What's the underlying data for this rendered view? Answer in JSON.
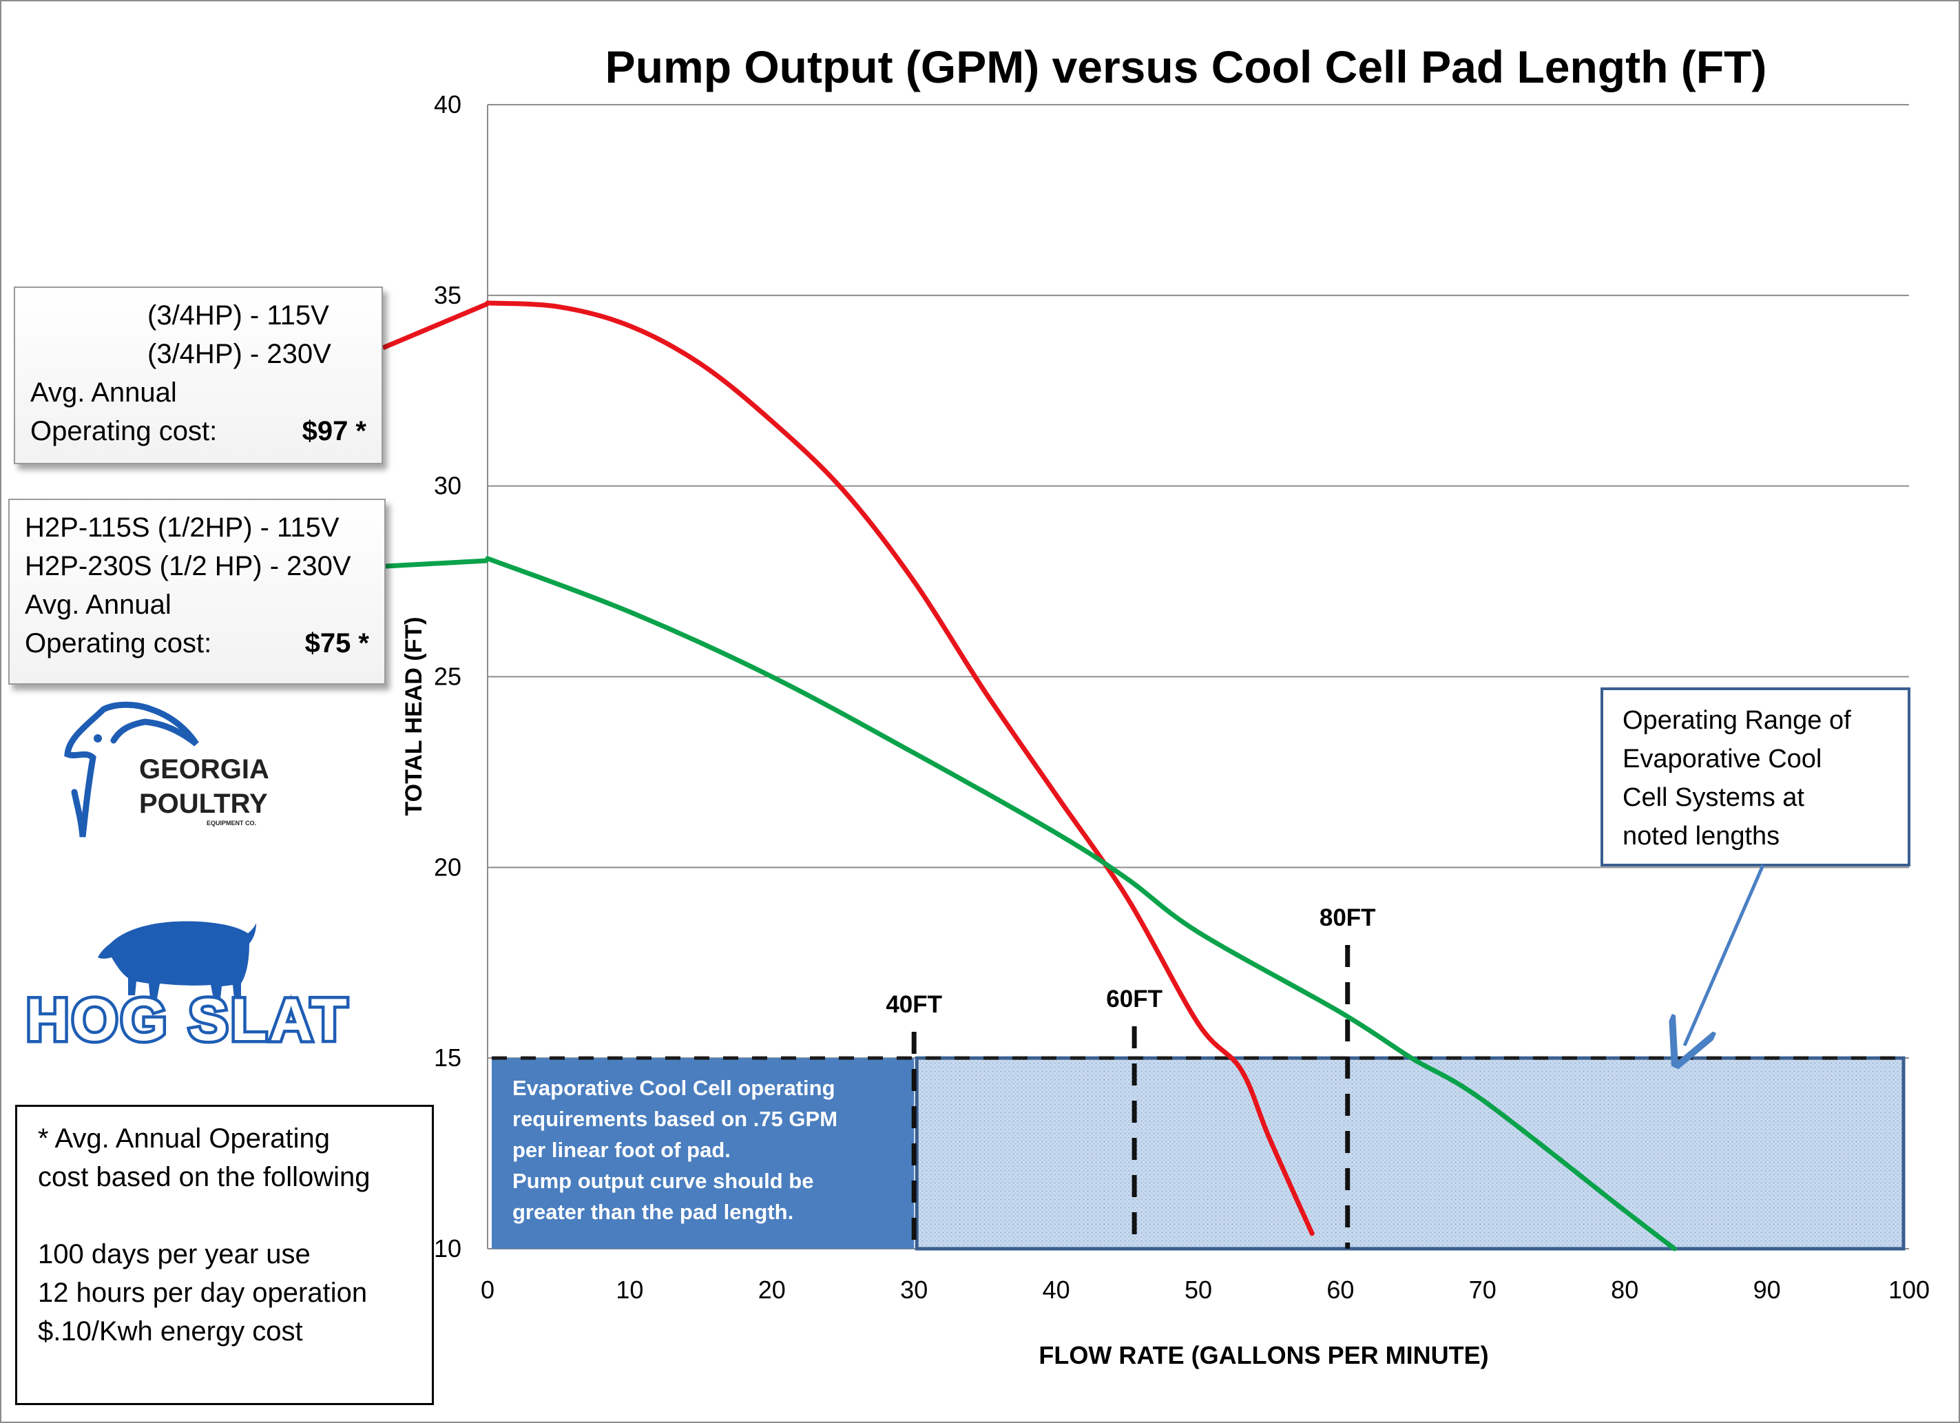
{
  "chart_data": {
    "type": "line",
    "title": "Pump Output (GPM) versus Cool Cell Pad Length (FT)",
    "xlabel": "FLOW RATE (GALLONS PER MINUTE)",
    "ylabel": "TOTAL HEAD (FT)",
    "xlim": [
      0,
      100
    ],
    "ylim": [
      10,
      40
    ],
    "x_ticks": [
      "0",
      "10",
      "20",
      "30",
      "40",
      "50",
      "60",
      "70",
      "80",
      "90",
      "100"
    ],
    "y_ticks": [
      "10",
      "15",
      "20",
      "25",
      "30",
      "35",
      "40"
    ],
    "grid": "horizontal",
    "series": [
      {
        "color": "#e8141b",
        "points": [
          [
            0,
            34.8
          ],
          [
            5,
            34.7
          ],
          [
            10,
            34.2
          ],
          [
            15,
            33.2
          ],
          [
            20,
            31.7
          ],
          [
            25,
            29.9
          ],
          [
            30,
            27.5
          ],
          [
            35,
            24.6
          ],
          [
            40,
            21.9
          ],
          [
            45,
            19.2
          ],
          [
            50,
            15.9
          ],
          [
            53,
            14.7
          ],
          [
            55,
            12.9
          ],
          [
            58,
            10.4
          ]
        ]
      },
      {
        "color": "#0aa24a",
        "points": [
          [
            0,
            28.1
          ],
          [
            10,
            26.7
          ],
          [
            20,
            25.0
          ],
          [
            30,
            23.0
          ],
          [
            40,
            20.9
          ],
          [
            45,
            19.7
          ],
          [
            50,
            18.3
          ],
          [
            60,
            16.2
          ],
          [
            65,
            15.0
          ],
          [
            70,
            13.9
          ],
          [
            80,
            11.0
          ],
          [
            83.5,
            10.0
          ]
        ]
      }
    ],
    "pad_markers": [
      {
        "label": "40FT",
        "x": 30
      },
      {
        "label": "60FT",
        "x": 45.5
      },
      {
        "label": "80FT",
        "x": 60.5
      }
    ],
    "operating_range": {
      "x": [
        30,
        100
      ],
      "y": [
        10,
        15
      ]
    },
    "requirement_range": {
      "x": [
        0,
        30
      ],
      "y": [
        10,
        15
      ]
    },
    "annotations": {
      "requirement_text": [
        "Evaporative Cool Cell operating",
        "requirements based on .75 GPM",
        "per linear foot of pad.",
        "Pump output curve should be",
        "greater than the pad length."
      ],
      "range_callout": [
        "Operating Range of",
        "Evaporative Cool",
        "Cell Systems at",
        "noted lengths"
      ],
      "marker_dash": "-"
    }
  },
  "legend_red": {
    "line1": "(3/4HP) - 115V",
    "line2": "(3/4HP) - 230V",
    "line3": "Avg. Annual",
    "line4_label": "Operating cost:",
    "line4_value": "$97 *"
  },
  "legend_green": {
    "line1": "H2P-115S (1/2HP) - 115V",
    "line2": "H2P-230S (1/2 HP) - 230V",
    "line3": "Avg. Annual",
    "line4_label": "Operating cost:",
    "line4_value": "$75 *"
  },
  "notes": {
    "line1": "*  Avg. Annual Operating",
    "line2": "cost based on the following",
    "line3": "100 days per year use",
    "line4": "12 hours per day operation",
    "line5": "$.10/Kwh energy cost"
  },
  "logos": {
    "georgia_line1": "GEORGIA",
    "georgia_line2": "POULTRY",
    "georgia_line3": "EQUIPMENT CO.",
    "hogslat": "HOG SLAT"
  }
}
